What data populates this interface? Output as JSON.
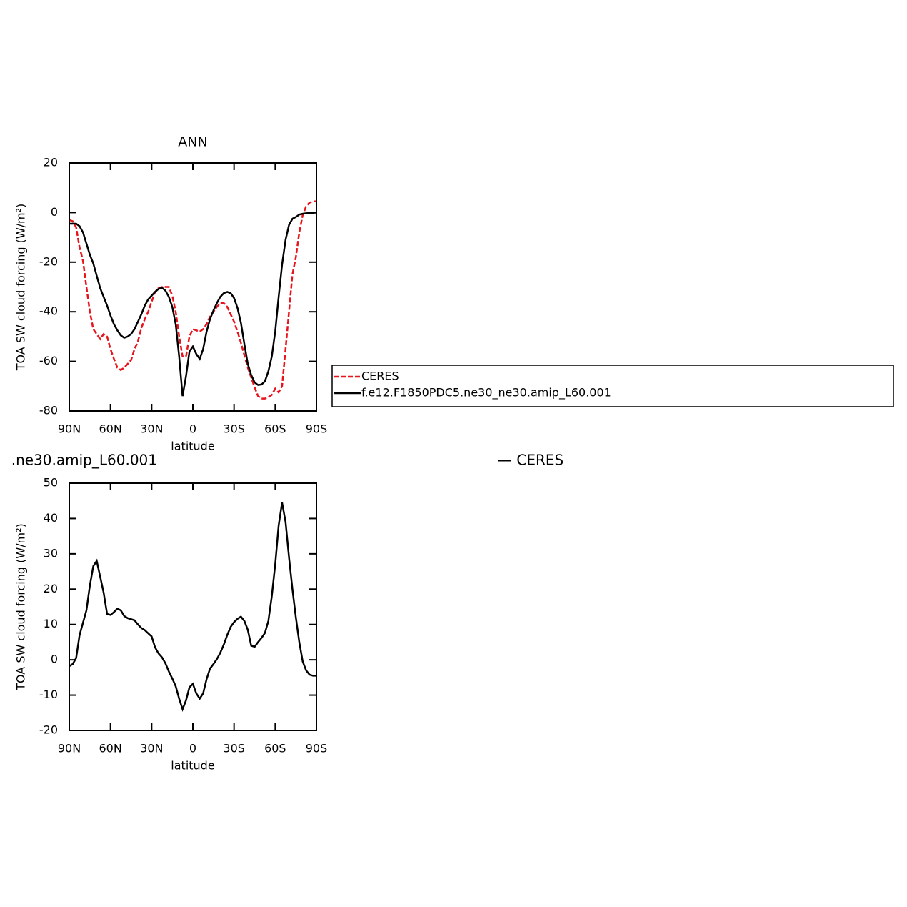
{
  "chart_data": [
    {
      "type": "line",
      "title": "ANN",
      "xlabel": "latitude",
      "ylabel": "TOA SW cloud forcing (W/m²)",
      "x": [
        90,
        87.5,
        85,
        82.5,
        80,
        77.5,
        75,
        72.5,
        70,
        67.5,
        65,
        62.5,
        60,
        57.5,
        55,
        52.5,
        50,
        47.5,
        45,
        42.5,
        40,
        37.5,
        35,
        32.5,
        30,
        27.5,
        25,
        22.5,
        20,
        17.5,
        15,
        12.5,
        10,
        7.5,
        5,
        2.5,
        0,
        -2.5,
        -5,
        -7.5,
        -10,
        -12.5,
        -15,
        -17.5,
        -20,
        -22.5,
        -25,
        -27.5,
        -30,
        -32.5,
        -35,
        -37.5,
        -40,
        -42.5,
        -45,
        -47.5,
        -50,
        -52.5,
        -55,
        -57.5,
        -60,
        -62.5,
        -65,
        -67.5,
        -70,
        -72.5,
        -75,
        -77.5,
        -80,
        -82.5,
        -85,
        -87.5,
        -90
      ],
      "series": [
        {
          "name": "CERES",
          "color": "#e8141b",
          "dash": true,
          "values": [
            -3,
            -3.5,
            -6,
            -14,
            -19.5,
            -30,
            -40,
            -47,
            -49,
            -51,
            -49,
            -50,
            -55,
            -59,
            -62.5,
            -63.5,
            -62.5,
            -61,
            -59.5,
            -55,
            -52,
            -46.5,
            -43,
            -40,
            -36,
            -32,
            -30.5,
            -30,
            -30,
            -30,
            -33.5,
            -40,
            -50,
            -58,
            -58,
            -50,
            -47,
            -47.5,
            -48,
            -47,
            -45,
            -42,
            -40,
            -38,
            -36.5,
            -36.5,
            -38,
            -41,
            -44,
            -48,
            -52.5,
            -57.5,
            -62.5,
            -66.5,
            -70.5,
            -74,
            -75,
            -75,
            -74.5,
            -73.5,
            -71,
            -72.5,
            -70,
            -55,
            -40,
            -25,
            -18,
            -8,
            -1,
            2.5,
            4,
            4.5,
            4.5
          ]
        },
        {
          "name": "f.e12.F1850PDC5.ne30_ne30.amip_L60.001",
          "color": "#000000",
          "dash": false,
          "values": [
            -4.5,
            -4.5,
            -4.5,
            -5.5,
            -8,
            -12.5,
            -17,
            -20.5,
            -25.5,
            -30.5,
            -34,
            -37.5,
            -41.5,
            -45,
            -47.5,
            -49.5,
            -50.5,
            -50,
            -49,
            -47,
            -44,
            -41,
            -37.5,
            -35,
            -33.5,
            -32,
            -30.8,
            -30.3,
            -31.5,
            -34,
            -38,
            -45,
            -58,
            -74,
            -66,
            -56,
            -54,
            -57,
            -59,
            -55,
            -48,
            -43,
            -39.5,
            -36.5,
            -34,
            -32.5,
            -32,
            -32.5,
            -34.5,
            -38.5,
            -44.5,
            -53,
            -61,
            -65.5,
            -68.5,
            -69.5,
            -69.3,
            -68,
            -64,
            -58,
            -48,
            -34,
            -21,
            -11,
            -5,
            -2.5,
            -1.8,
            -0.8,
            -0.5,
            -0.3,
            -0.2,
            -0.1,
            0
          ]
        }
      ],
      "xlim": [
        90,
        -90
      ],
      "xticks": [
        {
          "value": 90,
          "label": "90N"
        },
        {
          "value": 60,
          "label": "60N"
        },
        {
          "value": 30,
          "label": "30N"
        },
        0,
        {
          "value": -30,
          "label": "30S"
        },
        {
          "value": -60,
          "label": "60S"
        },
        {
          "value": -90,
          "label": "90S"
        }
      ],
      "ylim": [
        -80,
        20
      ],
      "yticks": [
        20,
        0,
        -20,
        -40,
        -60,
        -80
      ],
      "legend": "right"
    },
    {
      "type": "line",
      "title": ".ne30.amip_L60.001",
      "title_right": "— CERES",
      "xlabel": "latitude",
      "ylabel": "TOA SW cloud forcing (W/m²)",
      "x": [
        90,
        87.5,
        85,
        82.5,
        80,
        77.5,
        75,
        72.5,
        70,
        67.5,
        65,
        62.5,
        60,
        57.5,
        55,
        52.5,
        50,
        47.5,
        45,
        42.5,
        40,
        37.5,
        35,
        32.5,
        30,
        27.5,
        25,
        22.5,
        20,
        17.5,
        15,
        12.5,
        10,
        7.5,
        5,
        2.5,
        0,
        -2.5,
        -5,
        -7.5,
        -10,
        -12.5,
        -15,
        -17.5,
        -20,
        -22.5,
        -25,
        -27.5,
        -30,
        -32.5,
        -35,
        -37.5,
        -40,
        -42.5,
        -45,
        -47.5,
        -50,
        -52.5,
        -55,
        -57.5,
        -60,
        -62.5,
        -65,
        -67.5,
        -70,
        -72.5,
        -75,
        -77.5,
        -80,
        -82.5,
        -85,
        -87.5,
        -90
      ],
      "series": [
        {
          "color": "#000000",
          "dash": false,
          "values": [
            -1.8,
            -1.2,
            0.5,
            7,
            10.5,
            14,
            21,
            26.5,
            28,
            23.5,
            19,
            13,
            12.7,
            13.5,
            14.5,
            14,
            12.4,
            11.8,
            11.5,
            11.2,
            10,
            9,
            8.4,
            7.5,
            6.6,
            3.5,
            1.8,
            0.7,
            -1,
            -3.3,
            -5.3,
            -7.5,
            -11,
            -14,
            -11.5,
            -7.8,
            -6.8,
            -9.5,
            -11,
            -9.5,
            -5.5,
            -2.5,
            -1.2,
            0.2,
            2,
            4.3,
            7,
            9.3,
            10.7,
            11.6,
            12.2,
            11,
            8.5,
            4,
            3.7,
            5,
            6.2,
            7.6,
            11,
            18,
            27,
            38,
            44.5,
            39,
            29,
            20,
            12,
            5,
            -0.5,
            -3,
            -4.2,
            -4.5,
            -4.5
          ]
        }
      ],
      "xlim": [
        90,
        -90
      ],
      "xticks": [
        {
          "value": 90,
          "label": "90N"
        },
        {
          "value": 60,
          "label": "60N"
        },
        {
          "value": 30,
          "label": "30N"
        },
        0,
        {
          "value": -30,
          "label": "30S"
        },
        {
          "value": -60,
          "label": "60S"
        },
        {
          "value": -90,
          "label": "90S"
        }
      ],
      "ylim": [
        -20,
        50
      ],
      "yticks": [
        50,
        40,
        30,
        20,
        10,
        0,
        -10,
        -20
      ]
    }
  ]
}
